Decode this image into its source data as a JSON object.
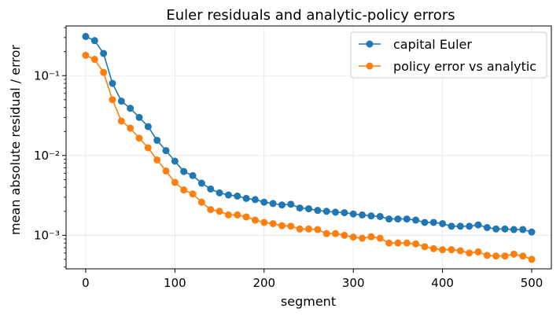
{
  "chart_data": {
    "type": "line",
    "title": "Euler residuals and analytic-policy errors",
    "xlabel": "segment",
    "ylabel": "mean absolute residual / error",
    "xscale": "linear",
    "yscale": "log",
    "xlim": [
      -22,
      522
    ],
    "ylim": [
      0.00038,
      0.42
    ],
    "xticks": [
      0,
      100,
      200,
      300,
      400,
      500
    ],
    "xtick_labels": [
      "0",
      "100",
      "200",
      "300",
      "400",
      "500"
    ],
    "yticks": [
      0.001,
      0.01,
      0.1
    ],
    "ytick_labels": [
      "10⁻³",
      "10⁻²",
      "10⁻¹"
    ],
    "grid": true,
    "legend_position": "top-right",
    "x": [
      0,
      10,
      20,
      30,
      40,
      50,
      60,
      70,
      80,
      90,
      100,
      110,
      120,
      130,
      140,
      150,
      160,
      170,
      180,
      190,
      200,
      210,
      220,
      230,
      240,
      250,
      260,
      270,
      280,
      290,
      300,
      310,
      320,
      330,
      340,
      350,
      360,
      370,
      380,
      390,
      400,
      410,
      420,
      430,
      440,
      450,
      460,
      470,
      480,
      490,
      500
    ],
    "series": [
      {
        "name": "capital Euler",
        "color": "#1f77b4",
        "values": [
          0.31,
          0.275,
          0.19,
          0.08,
          0.048,
          0.039,
          0.03,
          0.023,
          0.0155,
          0.0115,
          0.0085,
          0.0063,
          0.0056,
          0.0045,
          0.0038,
          0.0034,
          0.0032,
          0.0031,
          0.0029,
          0.0028,
          0.0026,
          0.0025,
          0.0024,
          0.00245,
          0.0022,
          0.00215,
          0.00205,
          0.002,
          0.00195,
          0.00192,
          0.00185,
          0.0018,
          0.00175,
          0.00172,
          0.0016,
          0.0016,
          0.0016,
          0.00155,
          0.00145,
          0.00145,
          0.0014,
          0.0013,
          0.0013,
          0.0013,
          0.00135,
          0.00125,
          0.0012,
          0.0012,
          0.00118,
          0.00118,
          0.0011
        ]
      },
      {
        "name": "policy error vs analytic",
        "color": "#ff7f0e",
        "values": [
          0.18,
          0.16,
          0.11,
          0.05,
          0.027,
          0.022,
          0.0165,
          0.0125,
          0.0088,
          0.0064,
          0.0046,
          0.0037,
          0.0033,
          0.0026,
          0.0021,
          0.002,
          0.0018,
          0.0018,
          0.0017,
          0.00155,
          0.00145,
          0.0014,
          0.00132,
          0.0013,
          0.0012,
          0.0012,
          0.00118,
          0.00105,
          0.00105,
          0.001,
          0.00095,
          0.00092,
          0.00096,
          0.00092,
          0.0008,
          0.0008,
          0.0008,
          0.00078,
          0.00072,
          0.00068,
          0.00066,
          0.00066,
          0.00064,
          0.0006,
          0.00062,
          0.00056,
          0.00055,
          0.00055,
          0.00058,
          0.00055,
          0.0005
        ]
      }
    ]
  }
}
